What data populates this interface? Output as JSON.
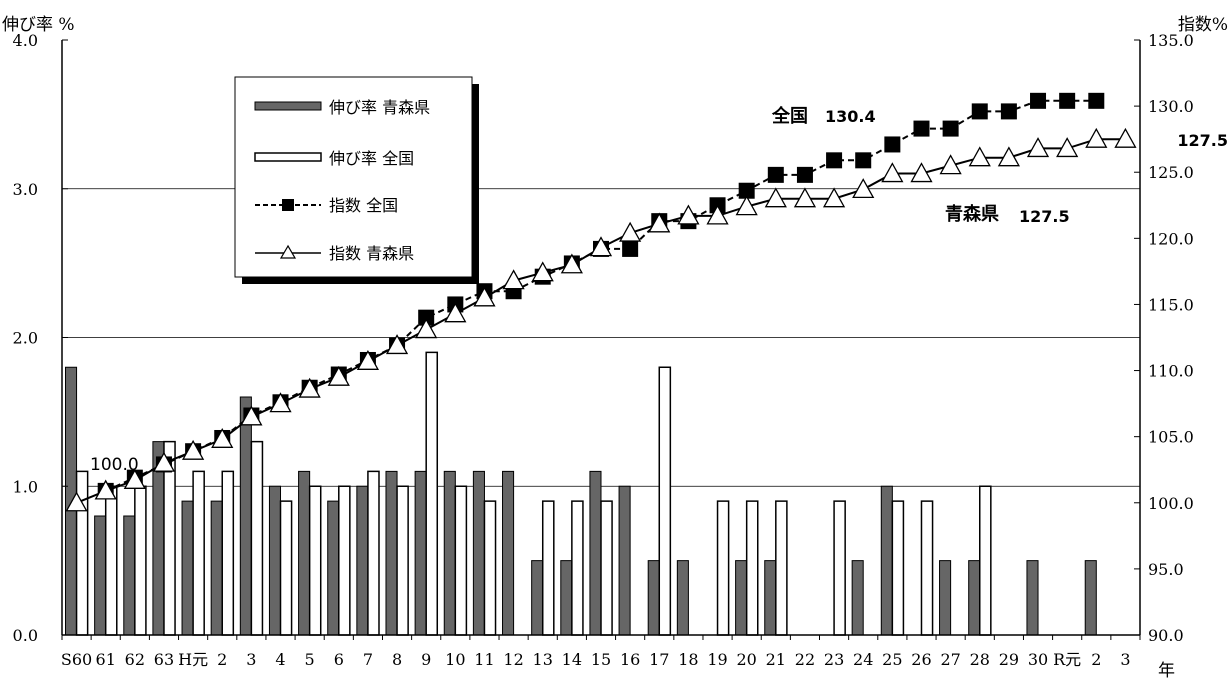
{
  "chart_data": {
    "type": "bar",
    "categories": [
      "S60",
      "61",
      "62",
      "63",
      "H元",
      "2",
      "3",
      "4",
      "5",
      "6",
      "7",
      "8",
      "9",
      "10",
      "11",
      "12",
      "13",
      "14",
      "15",
      "16",
      "17",
      "18",
      "19",
      "20",
      "21",
      "22",
      "23",
      "24",
      "25",
      "26",
      "27",
      "28",
      "29",
      "30",
      "R元",
      "2",
      "3"
    ],
    "y_left_label": "伸び率 %",
    "y_right_label": "指数%",
    "x_unit": "年",
    "y_left_ticks": [
      "0.0",
      "1.0",
      "2.0",
      "3.0",
      "4.0"
    ],
    "y_right_ticks": [
      "90.0",
      "95.0",
      "100.0",
      "105.0",
      "110.0",
      "115.0",
      "120.0",
      "125.0",
      "130.0",
      "135.0"
    ],
    "ylim_left": [
      0,
      4
    ],
    "ylim_right": [
      90,
      135
    ],
    "grid": "horizontal",
    "series": [
      {
        "name": "伸び率 青森県",
        "kind": "bar",
        "color": "#666666",
        "axis": "left",
        "values": [
          1.8,
          0.8,
          0.8,
          1.3,
          0.9,
          0.9,
          1.6,
          1.0,
          1.1,
          0.9,
          1.0,
          1.1,
          1.1,
          1.1,
          1.1,
          1.1,
          0.5,
          0.5,
          1.1,
          1.0,
          0.5,
          0.5,
          0.0,
          0.5,
          0.5,
          0.0,
          0.0,
          0.5,
          1.0,
          0.0,
          0.5,
          0.5,
          0.0,
          0.5,
          0.0,
          0.5,
          0.0
        ]
      },
      {
        "name": "伸び率 全国",
        "kind": "bar",
        "color": "#ffffff",
        "axis": "left",
        "values": [
          1.1,
          1.0,
          1.0,
          1.3,
          1.1,
          1.1,
          1.3,
          0.9,
          1.0,
          1.0,
          1.1,
          1.0,
          1.9,
          1.0,
          0.9,
          0.0,
          0.9,
          0.9,
          0.9,
          0.0,
          1.8,
          0.0,
          0.9,
          0.9,
          0.9,
          0.0,
          0.9,
          0.0,
          0.9,
          0.9,
          0.0,
          1.0,
          0.0,
          0.0,
          0.0,
          0.0,
          0.0
        ]
      },
      {
        "name": "指数 全国",
        "kind": "line",
        "marker": "square",
        "dash": "dashed",
        "axis": "right",
        "values": [
          null,
          100.9,
          101.9,
          102.9,
          103.9,
          104.9,
          106.6,
          107.6,
          108.7,
          109.7,
          110.8,
          111.9,
          114.0,
          115.0,
          116.0,
          116.0,
          117.1,
          118.1,
          119.2,
          119.2,
          121.3,
          121.3,
          122.5,
          123.6,
          124.8,
          124.8,
          125.9,
          125.9,
          127.1,
          128.3,
          128.3,
          129.6,
          129.6,
          130.4,
          130.4,
          130.4,
          null
        ]
      },
      {
        "name": "指数 青森県",
        "kind": "line",
        "marker": "triangle",
        "dash": "solid",
        "axis": "right",
        "values": [
          100.0,
          100.9,
          101.7,
          103.0,
          103.9,
          104.8,
          106.5,
          107.5,
          108.6,
          109.5,
          110.7,
          111.9,
          113.1,
          114.3,
          115.5,
          116.8,
          117.4,
          118.0,
          119.3,
          120.4,
          121.1,
          121.7,
          121.7,
          122.4,
          123.0,
          123.0,
          123.0,
          123.7,
          124.9,
          124.9,
          125.5,
          126.1,
          126.1,
          126.8,
          126.8,
          127.5,
          127.5
        ]
      }
    ],
    "annotations": [
      {
        "text": "100.0"
      },
      {
        "text": "全国",
        "value": "130.4"
      },
      {
        "text": "127.5"
      },
      {
        "text": "青森県",
        "value": "127.5"
      }
    ]
  },
  "legend": {
    "items": [
      "伸び率 青森県",
      "伸び率 全国",
      "指数 全国",
      "指数 青森県"
    ]
  }
}
